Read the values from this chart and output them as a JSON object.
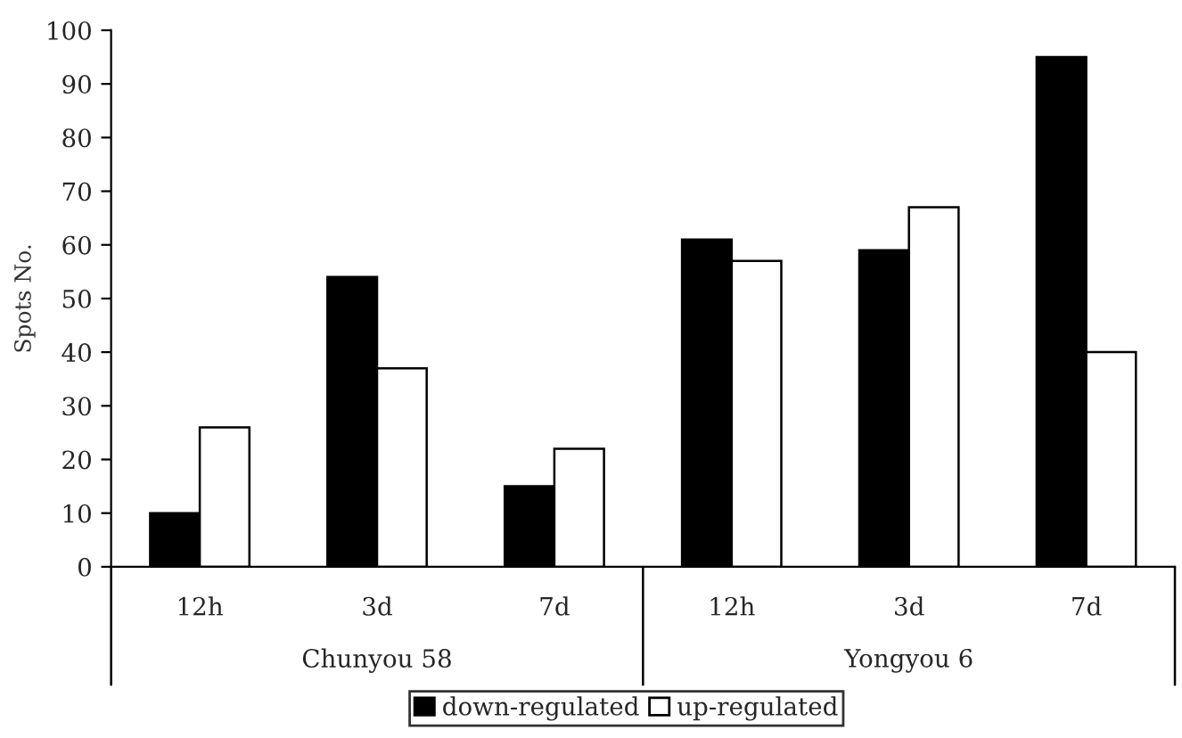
{
  "chart_data": {
    "type": "bar",
    "ylabel": "Spots No.",
    "categories": [
      "12h",
      "3d",
      "7d",
      "12h",
      "3d",
      "7d"
    ],
    "annotations": [
      "Chunyou 58",
      "Yongyou 6"
    ],
    "series": [
      {
        "name": "down-regulated",
        "color": "#000000",
        "values": [
          10,
          54,
          15,
          61,
          59,
          95
        ]
      },
      {
        "name": "up-regulated",
        "color": "#ffffff",
        "values": [
          26,
          37,
          22,
          57,
          67,
          40
        ]
      }
    ],
    "ylim": [
      0,
      100
    ],
    "yticks": [
      0,
      10,
      20,
      30,
      40,
      50,
      60,
      70,
      80,
      90,
      100
    ],
    "legend": "bottom",
    "grid": false
  }
}
